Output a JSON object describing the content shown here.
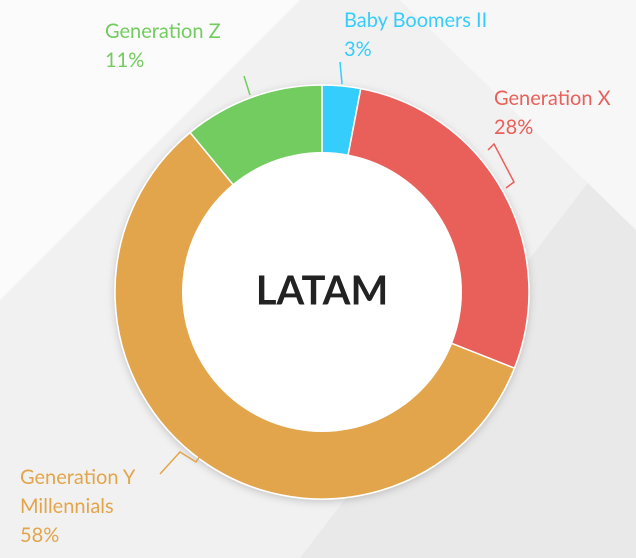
{
  "chart_data": {
    "type": "donut",
    "center_label": "LATAM",
    "categories": [
      "Baby Boomers II",
      "Generation X",
      "Generation Y Millennials",
      "Generation Z"
    ],
    "values": [
      3,
      28,
      58,
      11
    ],
    "value_labels": [
      "3%",
      "28%",
      "58%",
      "11%"
    ],
    "colors": [
      "#36cdfc",
      "#e9605a",
      "#e3a54b",
      "#73cc5f"
    ]
  }
}
